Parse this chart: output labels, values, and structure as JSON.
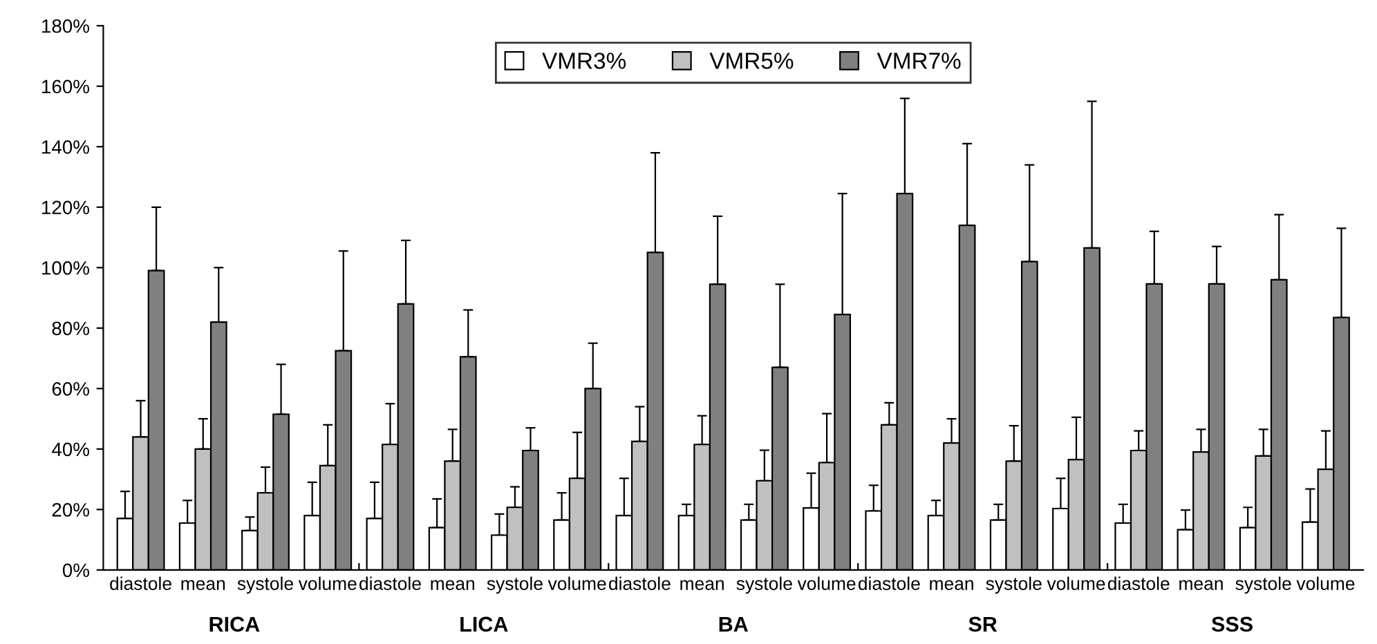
{
  "chart_data": {
    "type": "bar",
    "categories": [
      "diastole",
      "mean",
      "systole",
      "volume",
      "diastole",
      "mean",
      "systole",
      "volume",
      "diastole",
      "mean",
      "systole",
      "volume",
      "diastole",
      "mean",
      "systole",
      "volume",
      "diastole",
      "mean",
      "systole",
      "volume"
    ],
    "annotations": [
      "RICA",
      "LICA",
      "BA",
      "SR",
      "SSS"
    ],
    "series": [
      {
        "name": "VMR3%",
        "color": "#ffffff",
        "values": [
          17,
          15.5,
          13,
          18,
          17,
          14,
          11.5,
          16.5,
          18,
          18,
          16.5,
          20.5,
          19.5,
          18,
          16.5,
          20.3,
          15.5,
          13.3,
          14,
          15.8
        ],
        "errors": [
          [
            17,
            26
          ],
          [
            15.5,
            23
          ],
          [
            13,
            17.5
          ],
          [
            18,
            29
          ],
          [
            17,
            29
          ],
          [
            14,
            23.5
          ],
          [
            11.5,
            18.5
          ],
          [
            16.5,
            25.5
          ],
          [
            18,
            30.3
          ],
          [
            18,
            21.7
          ],
          [
            16.5,
            21.7
          ],
          [
            20.5,
            32
          ],
          [
            19.5,
            28
          ],
          [
            18,
            23
          ],
          [
            16.5,
            21.7
          ],
          [
            20.3,
            30.3
          ],
          [
            15.5,
            21.7
          ],
          [
            13.3,
            19.8
          ],
          [
            14,
            20.7
          ],
          [
            15.8,
            26.8
          ]
        ]
      },
      {
        "name": "VMR5%",
        "color": "#c0c0c0",
        "values": [
          44,
          40,
          25.5,
          34.5,
          41.5,
          36,
          20.7,
          30.3,
          42.5,
          41.5,
          29.5,
          35.5,
          48,
          42,
          36,
          36.5,
          39.5,
          39,
          37.7,
          33.3
        ],
        "errors": [
          [
            44,
            56
          ],
          [
            40,
            50
          ],
          [
            25.5,
            34
          ],
          [
            34.5,
            48
          ],
          [
            41.5,
            55
          ],
          [
            36,
            46.5
          ],
          [
            20.7,
            27.5
          ],
          [
            30.3,
            45.5
          ],
          [
            42.5,
            54
          ],
          [
            41.5,
            51
          ],
          [
            29.5,
            39.6
          ],
          [
            35.5,
            51.7
          ],
          [
            48,
            55.3
          ],
          [
            42,
            50
          ],
          [
            36,
            47.7
          ],
          [
            36.5,
            50.5
          ],
          [
            39.5,
            46
          ],
          [
            39,
            46.5
          ],
          [
            37.7,
            46.5
          ],
          [
            33.3,
            46
          ]
        ]
      },
      {
        "name": "VMR7%",
        "color": "#808080",
        "values": [
          99,
          82,
          51.5,
          72.5,
          88,
          70.5,
          39.5,
          60,
          105,
          94.5,
          67,
          84.5,
          124.5,
          114,
          102,
          106.5,
          94.6,
          94.6,
          96,
          83.5
        ],
        "errors": [
          [
            99,
            120
          ],
          [
            82,
            100
          ],
          [
            51.5,
            68
          ],
          [
            72.5,
            105.5
          ],
          [
            88,
            109
          ],
          [
            70.5,
            86
          ],
          [
            39.5,
            47
          ],
          [
            60,
            75
          ],
          [
            105,
            138
          ],
          [
            94.5,
            117
          ],
          [
            67,
            94.5
          ],
          [
            84.5,
            124.5
          ],
          [
            124.5,
            156
          ],
          [
            114,
            141
          ],
          [
            102,
            134
          ],
          [
            106.5,
            155
          ],
          [
            94.6,
            112
          ],
          [
            94.6,
            107
          ],
          [
            96,
            117.5
          ],
          [
            83.5,
            113
          ]
        ]
      }
    ],
    "ylim": [
      0,
      180
    ],
    "yticks": [
      {
        "value": 0,
        "label": "0%"
      },
      {
        "value": 20,
        "label": "20%"
      },
      {
        "value": 40,
        "label": "40%"
      },
      {
        "value": 60,
        "label": "60%"
      },
      {
        "value": 80,
        "label": "80%"
      },
      {
        "value": 100,
        "label": "100%"
      },
      {
        "value": 120,
        "label": "120%"
      },
      {
        "value": 140,
        "label": "140%"
      },
      {
        "value": 160,
        "label": "160%"
      },
      {
        "value": 180,
        "label": "180%"
      }
    ],
    "legend": "top"
  }
}
